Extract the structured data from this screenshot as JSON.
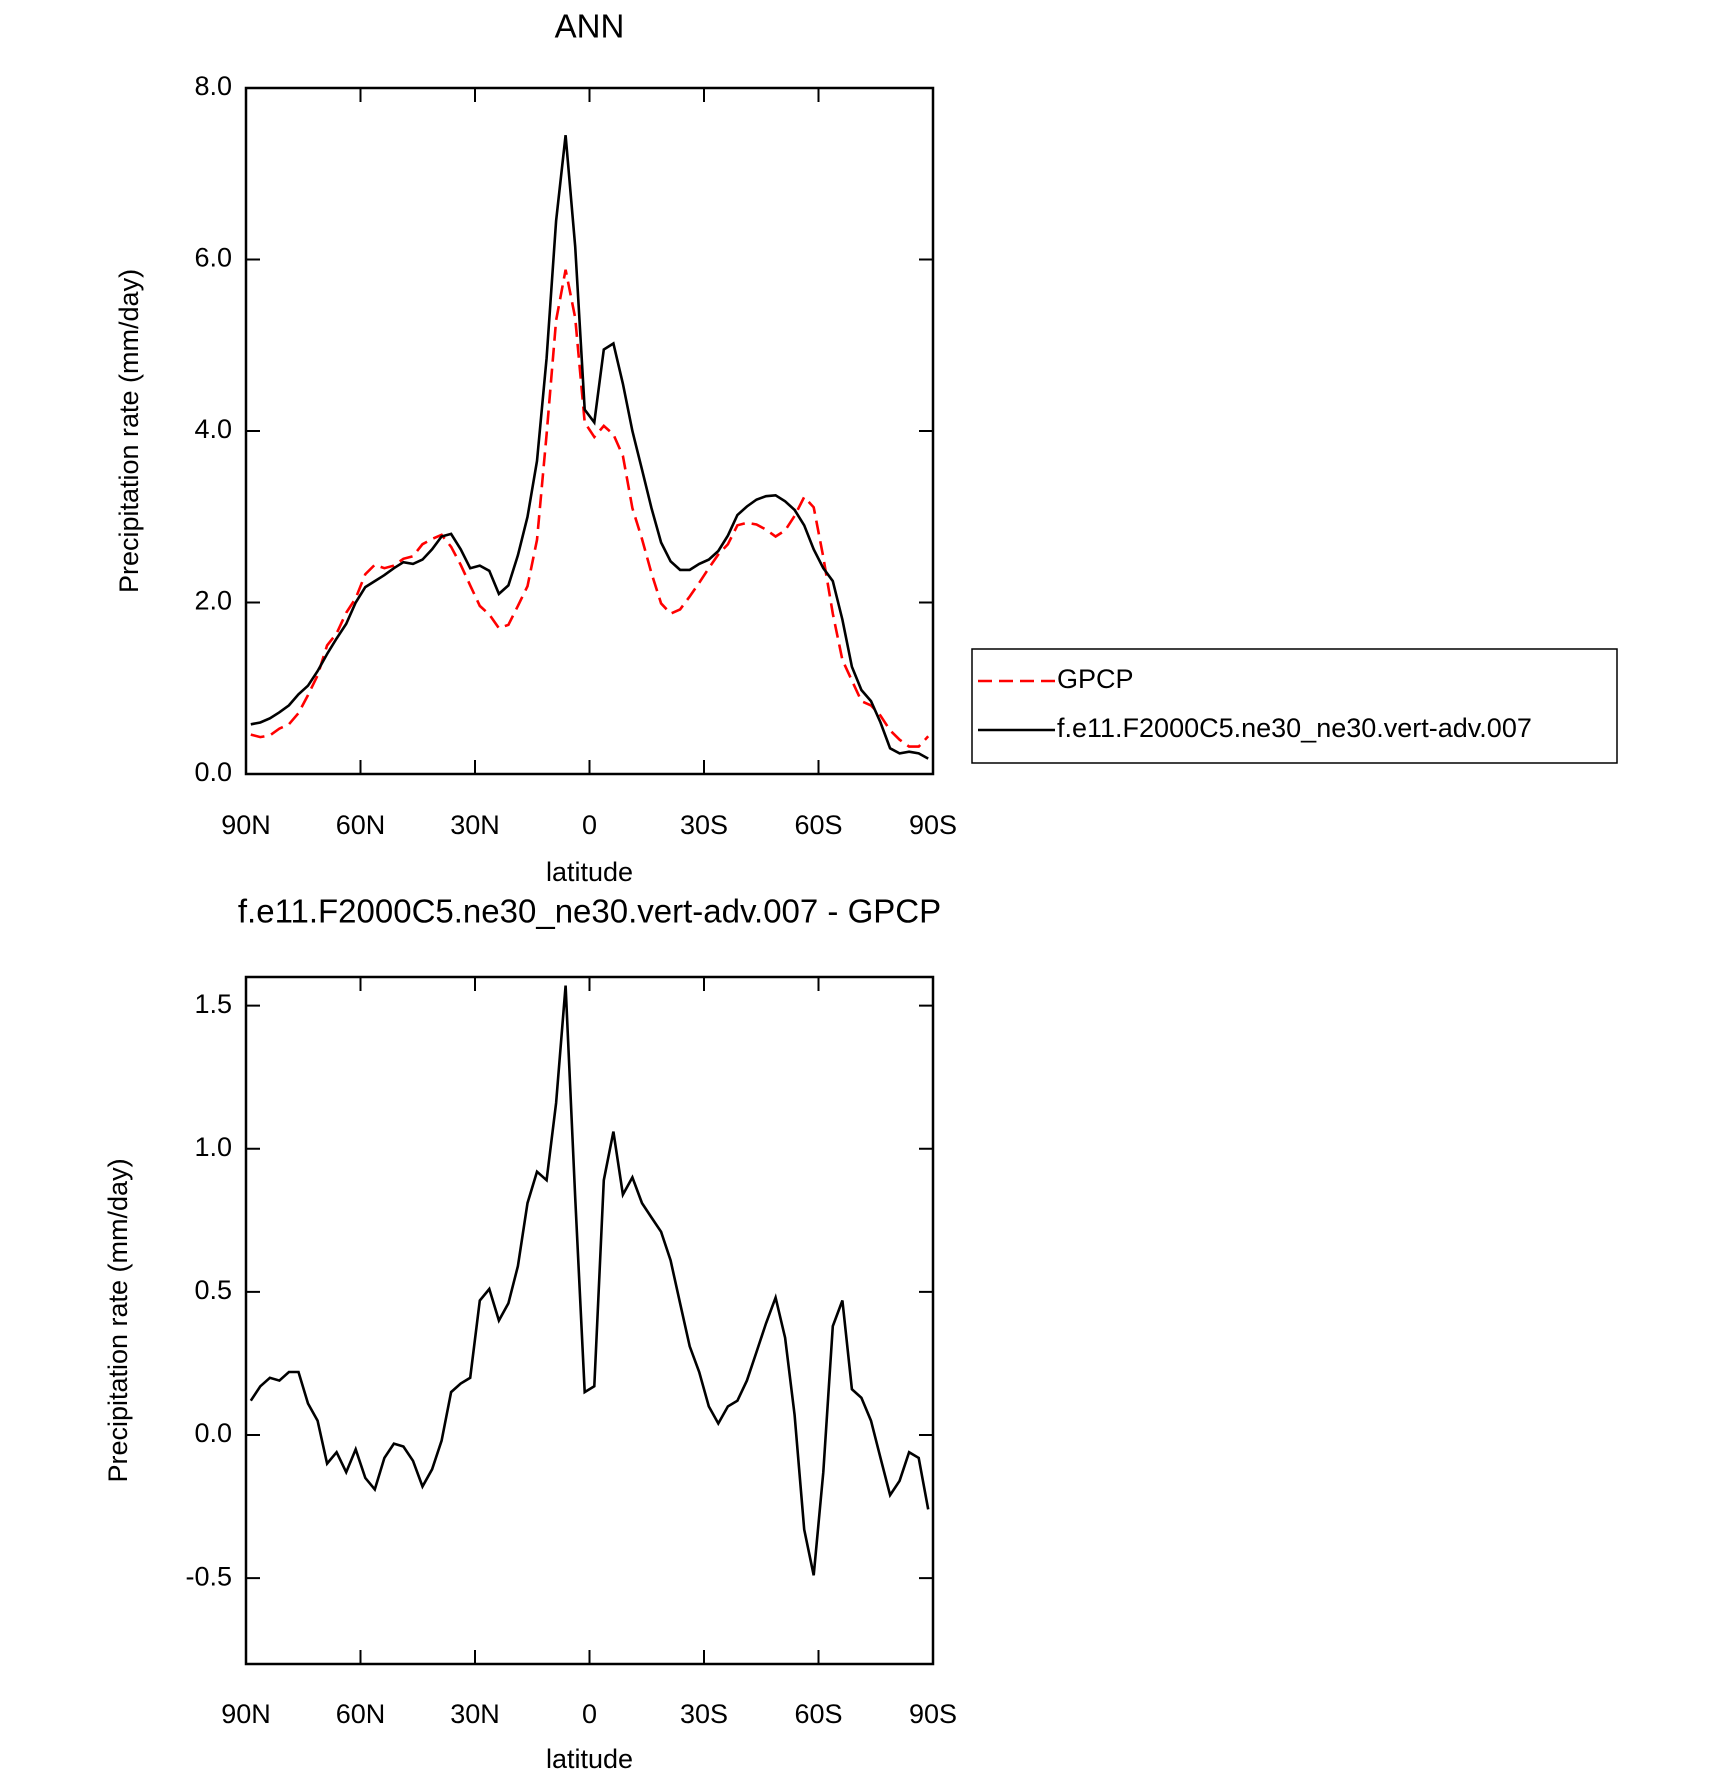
{
  "chart_data": [
    {
      "type": "line",
      "title": "ANN",
      "x_label": "latitude",
      "y_label": "Precipitation rate (mm/day)",
      "x": [
        88.75,
        86.25,
        83.75,
        81.25,
        78.75,
        76.25,
        73.75,
        71.25,
        68.75,
        66.25,
        63.75,
        61.25,
        58.75,
        56.25,
        53.75,
        51.25,
        48.75,
        46.25,
        43.75,
        41.25,
        38.75,
        36.25,
        33.75,
        31.25,
        28.75,
        26.25,
        23.75,
        21.25,
        18.75,
        16.25,
        13.75,
        11.25,
        8.75,
        6.25,
        3.75,
        1.25,
        -1.25,
        -3.75,
        -6.25,
        -8.75,
        -11.25,
        -13.75,
        -16.25,
        -18.75,
        -21.25,
        -23.75,
        -26.25,
        -28.75,
        -31.25,
        -33.75,
        -36.25,
        -38.75,
        -41.25,
        -43.75,
        -46.25,
        -48.75,
        -51.25,
        -53.75,
        -56.25,
        -58.75,
        -61.25,
        -63.75,
        -66.25,
        -68.75,
        -71.25,
        -73.75,
        -76.25,
        -78.75,
        -81.25,
        -83.75,
        -86.25,
        -88.75
      ],
      "series": [
        {
          "name": "GPCP",
          "color": "#ff0000",
          "line_style": "dashed",
          "values": [
            0.46,
            0.43,
            0.45,
            0.53,
            0.58,
            0.71,
            0.92,
            1.15,
            1.5,
            1.64,
            1.88,
            2.05,
            2.33,
            2.44,
            2.4,
            2.43,
            2.51,
            2.54,
            2.68,
            2.74,
            2.79,
            2.65,
            2.44,
            2.2,
            1.96,
            1.86,
            1.7,
            1.74,
            1.96,
            2.19,
            2.73,
            3.96,
            5.29,
            5.88,
            5.32,
            4.1,
            3.93,
            4.06,
            3.96,
            3.71,
            3.1,
            2.74,
            2.34,
            1.99,
            1.87,
            1.92,
            2.07,
            2.23,
            2.4,
            2.56,
            2.68,
            2.9,
            2.93,
            2.91,
            2.85,
            2.77,
            2.84,
            3.01,
            3.23,
            3.11,
            2.53,
            1.87,
            1.33,
            1.09,
            0.85,
            0.8,
            0.68,
            0.51,
            0.4,
            0.32,
            0.32,
            0.44
          ]
        },
        {
          "name": "f.e11.F2000C5.ne30_ne30.vert-adv.007",
          "color": "#000000",
          "line_style": "solid",
          "values": [
            0.58,
            0.6,
            0.65,
            0.72,
            0.8,
            0.93,
            1.03,
            1.2,
            1.4,
            1.58,
            1.75,
            2.0,
            2.18,
            2.25,
            2.32,
            2.4,
            2.47,
            2.45,
            2.5,
            2.62,
            2.77,
            2.8,
            2.62,
            2.4,
            2.43,
            2.37,
            2.1,
            2.2,
            2.55,
            3.0,
            3.65,
            4.85,
            6.45,
            7.45,
            6.15,
            4.25,
            4.1,
            4.95,
            5.02,
            4.55,
            4.0,
            3.55,
            3.1,
            2.7,
            2.48,
            2.38,
            2.38,
            2.45,
            2.5,
            2.6,
            2.78,
            3.02,
            3.12,
            3.2,
            3.24,
            3.25,
            3.18,
            3.08,
            2.9,
            2.62,
            2.4,
            2.25,
            1.8,
            1.25,
            0.98,
            0.85,
            0.6,
            0.3,
            0.24,
            0.26,
            0.24,
            0.18
          ]
        }
      ],
      "xlim": [
        90,
        -90
      ],
      "xticks": [
        {
          "value": 90,
          "label": "90N"
        },
        {
          "value": 60,
          "label": "60N"
        },
        {
          "value": 30,
          "label": "30N"
        },
        0,
        {
          "value": -30,
          "label": "30S"
        },
        {
          "value": -60,
          "label": "60S"
        },
        {
          "value": -90,
          "label": "90S"
        }
      ],
      "ylim": [
        0,
        8
      ],
      "yticks": [
        {
          "value": 0,
          "label": "0.0"
        },
        {
          "value": 2,
          "label": "2.0"
        },
        {
          "value": 4,
          "label": "4.0"
        },
        {
          "value": 6,
          "label": "6.0"
        },
        {
          "value": 8,
          "label": "8.0"
        }
      ],
      "legend": "right"
    },
    {
      "type": "line",
      "title": "f.e11.F2000C5.ne30_ne30.vert-adv.007 - GPCP",
      "x_label": "latitude",
      "y_label": "Precipitation rate (mm/day)",
      "x": [
        88.75,
        86.25,
        83.75,
        81.25,
        78.75,
        76.25,
        73.75,
        71.25,
        68.75,
        66.25,
        63.75,
        61.25,
        58.75,
        56.25,
        53.75,
        51.25,
        48.75,
        46.25,
        43.75,
        41.25,
        38.75,
        36.25,
        33.75,
        31.25,
        28.75,
        26.25,
        23.75,
        21.25,
        18.75,
        16.25,
        13.75,
        11.25,
        8.75,
        6.25,
        3.75,
        1.25,
        -1.25,
        -3.75,
        -6.25,
        -8.75,
        -11.25,
        -13.75,
        -16.25,
        -18.75,
        -21.25,
        -23.75,
        -26.25,
        -28.75,
        -31.25,
        -33.75,
        -36.25,
        -38.75,
        -41.25,
        -43.75,
        -46.25,
        -48.75,
        -51.25,
        -53.75,
        -56.25,
        -58.75,
        -61.25,
        -63.75,
        -66.25,
        -68.75,
        -71.25,
        -73.75,
        -76.25,
        -78.75,
        -81.25,
        -83.75,
        -86.25,
        -88.75
      ],
      "color": "#000000",
      "values": [
        0.12,
        0.17,
        0.2,
        0.19,
        0.22,
        0.22,
        0.11,
        0.05,
        -0.1,
        -0.06,
        -0.13,
        -0.05,
        -0.15,
        -0.19,
        -0.08,
        -0.03,
        -0.04,
        -0.09,
        -0.18,
        -0.12,
        -0.02,
        0.15,
        0.18,
        0.2,
        0.47,
        0.51,
        0.4,
        0.46,
        0.59,
        0.81,
        0.92,
        0.89,
        1.16,
        1.57,
        0.83,
        0.15,
        0.17,
        0.89,
        1.06,
        0.84,
        0.9,
        0.81,
        0.76,
        0.71,
        0.61,
        0.46,
        0.31,
        0.22,
        0.1,
        0.04,
        0.1,
        0.12,
        0.19,
        0.29,
        0.39,
        0.48,
        0.34,
        0.07,
        -0.33,
        -0.49,
        -0.13,
        0.38,
        0.47,
        0.16,
        0.13,
        0.05,
        -0.08,
        -0.21,
        -0.16,
        -0.06,
        -0.08,
        -0.26
      ],
      "xlim": [
        90,
        -90
      ],
      "xticks": [
        {
          "value": 90,
          "label": "90N"
        },
        {
          "value": 60,
          "label": "60N"
        },
        {
          "value": 30,
          "label": "30N"
        },
        0,
        {
          "value": -30,
          "label": "30S"
        },
        {
          "value": -60,
          "label": "60S"
        },
        {
          "value": -90,
          "label": "90S"
        }
      ],
      "ylim": [
        -0.8,
        1.6
      ],
      "yticks": [
        {
          "value": -0.5,
          "label": "-0.5"
        },
        {
          "value": 0,
          "label": "0.0"
        },
        {
          "value": 0.5,
          "label": "0.5"
        },
        {
          "value": 1,
          "label": "1.0"
        },
        {
          "value": 1.5,
          "label": "1.5"
        }
      ]
    }
  ]
}
